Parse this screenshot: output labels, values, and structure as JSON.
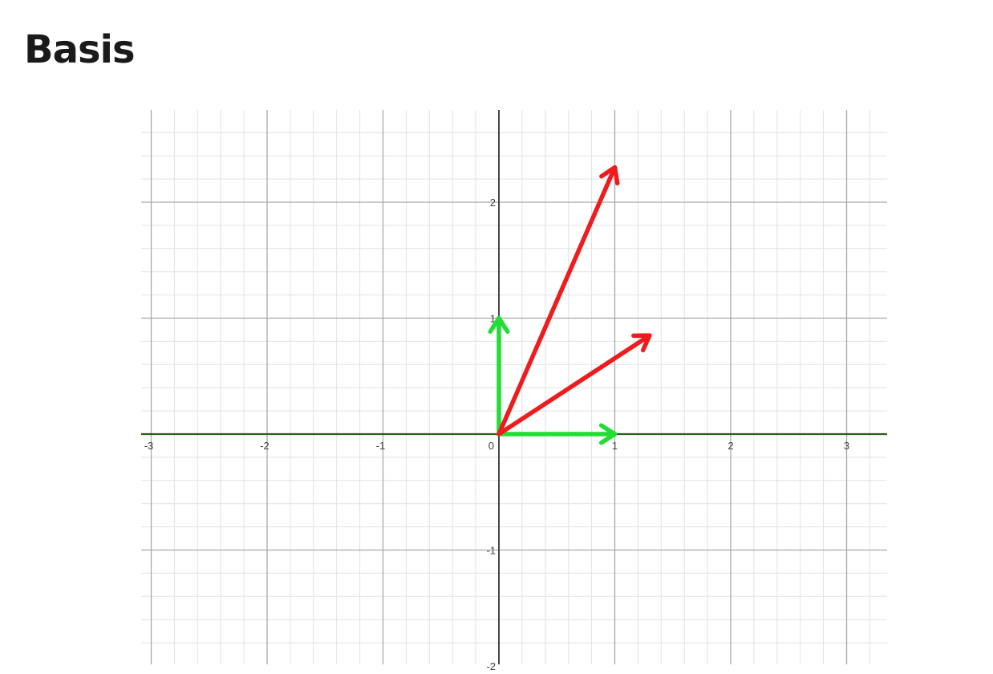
{
  "title": "Basis",
  "colors": {
    "x_axis": "#2f5a1f",
    "y_axis": "#333333",
    "major_grid": "#a9a9a9",
    "minor_grid": "#e2e2e2",
    "basis_vectors": "#22dd33",
    "transformed_vectors": "#ee1c1c"
  },
  "chart_data": {
    "type": "vector-plot",
    "grid": true,
    "xlim": [
      -3.1,
      3.35
    ],
    "ylim": [
      -2.0,
      2.8
    ],
    "x_ticks": [
      "-3",
      "-2",
      "-1",
      "0",
      "1",
      "2",
      "3"
    ],
    "y_ticks": [
      "-1",
      "1",
      "2",
      "-2"
    ],
    "vectors": [
      {
        "group": "basis",
        "color": "#22dd33",
        "from": [
          0,
          0
        ],
        "to": [
          1,
          0
        ]
      },
      {
        "group": "basis",
        "color": "#22dd33",
        "from": [
          0,
          0
        ],
        "to": [
          0,
          1
        ]
      },
      {
        "group": "transformed",
        "color": "#ee1c1c",
        "from": [
          0,
          0
        ],
        "to": [
          1,
          2.3
        ]
      },
      {
        "group": "transformed",
        "color": "#ee1c1c",
        "from": [
          0,
          0
        ],
        "to": [
          1.3,
          0.85
        ]
      }
    ]
  }
}
